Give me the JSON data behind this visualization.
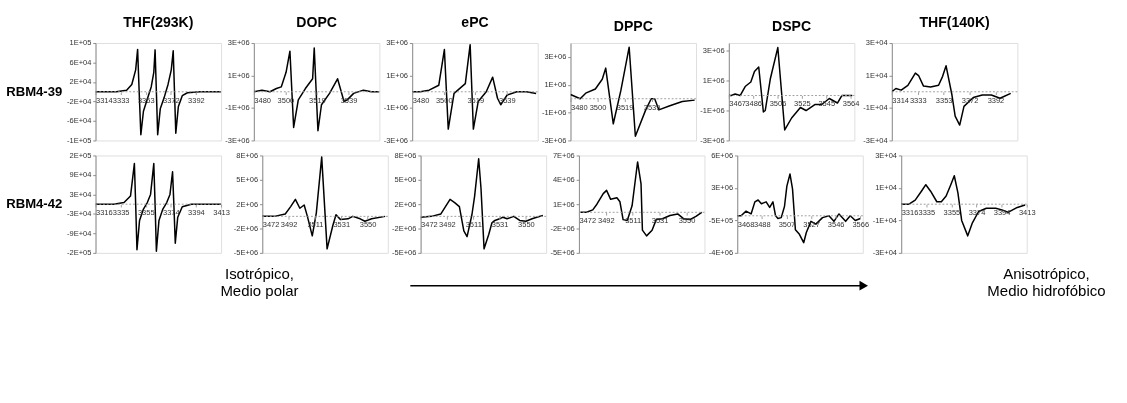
{
  "chart_data": [
    {
      "type": "line",
      "title": "THF(293K)",
      "ylabel": "RBM4-39",
      "color": "#000000",
      "xlim": [
        3314,
        3411
      ],
      "ylim": [
        -100000,
        100000
      ],
      "ref_lines": [
        {
          "axis": "y",
          "value": 0,
          "line_style": "dotted"
        }
      ],
      "xticks": [
        3314,
        {
          "value": 3333.4,
          "label": "3333"
        },
        {
          "value": 3352.8,
          "label": "3353"
        },
        {
          "value": 3372.2,
          "label": "3372"
        },
        {
          "value": 3391.6,
          "label": "3392"
        }
      ],
      "yticks": [
        {
          "value": -100000,
          "label": "-1E+05"
        },
        {
          "value": -60000,
          "label": "-6E+04"
        },
        {
          "value": -20000,
          "label": "-2E+04"
        },
        {
          "value": 20000,
          "label": "2E+04"
        },
        {
          "value": 60000,
          "label": "6E+04"
        },
        {
          "value": 100000,
          "label": "1E+05"
        }
      ],
      "x": [
        3314,
        3330,
        3338,
        3342,
        3345,
        3346.5,
        3347.7,
        3349,
        3351,
        3354,
        3357,
        3359,
        3360,
        3361,
        3362,
        3364,
        3367,
        3370,
        3372.5,
        3374,
        3375,
        3376,
        3378,
        3381,
        3385,
        3395,
        3411
      ],
      "values": [
        0,
        0,
        3000,
        15000,
        45000,
        87000,
        0,
        -88000,
        -40000,
        -15000,
        10000,
        40000,
        86000,
        0,
        -88000,
        -35000,
        -12000,
        15000,
        45000,
        84000,
        0,
        -85000,
        -30000,
        -8000,
        -2000,
        0,
        0
      ]
    },
    {
      "type": "line",
      "title": "DOPC",
      "color": "#000000",
      "xlim": [
        3480,
        3558
      ],
      "ylim": [
        -3000000,
        3000000
      ],
      "ref_lines": [
        {
          "axis": "y",
          "value": 0,
          "line_style": "dotted"
        }
      ],
      "xticks": [
        3480,
        {
          "value": 3499.6,
          "label": "3500"
        },
        {
          "value": 3519.2,
          "label": "3519"
        },
        {
          "value": 3538.8,
          "label": "3539"
        }
      ],
      "yticks": [
        {
          "value": -3000000,
          "label": "-3E+06"
        },
        {
          "value": -1000000,
          "label": "-1E+06"
        },
        {
          "value": 1000000,
          "label": "1E+06"
        },
        {
          "value": 3000000,
          "label": "3E+06"
        }
      ],
      "x": [
        3480,
        3485,
        3490,
        3494,
        3497,
        3500,
        3502.4,
        3504.7,
        3507.6,
        3512,
        3516.5,
        3517.5,
        3519.8,
        3522,
        3527,
        3532,
        3536,
        3538,
        3542,
        3548,
        3553,
        3558
      ],
      "values": [
        0,
        100000,
        0,
        200000,
        300000,
        1200000,
        2500000,
        -2200000,
        -500000,
        200000,
        800000,
        2700000,
        -2400000,
        -800000,
        -100000,
        800000,
        -600000,
        -500000,
        -100000,
        100000,
        0,
        0
      ]
    },
    {
      "type": "line",
      "title": "ePC",
      "color": "#000000",
      "xlim": [
        3480,
        3558
      ],
      "ylim": [
        -3000000,
        3000000
      ],
      "ref_lines": [
        {
          "axis": "y",
          "value": 0,
          "line_style": "dotted"
        }
      ],
      "xticks": [
        3480,
        {
          "value": 3499.6,
          "label": "3500"
        },
        {
          "value": 3519.2,
          "label": "3519"
        },
        {
          "value": 3538.8,
          "label": "3539"
        }
      ],
      "yticks": [
        {
          "value": -3000000,
          "label": "-3E+06"
        },
        {
          "value": -1000000,
          "label": "-1E+06"
        },
        {
          "value": 1000000,
          "label": "1E+06"
        },
        {
          "value": 3000000,
          "label": "3E+06"
        }
      ],
      "x": [
        3480,
        3485,
        3490.5,
        3496.5,
        3500,
        3502.4,
        3506,
        3513,
        3516,
        3518,
        3521,
        3526,
        3530,
        3533,
        3535,
        3539,
        3545,
        3551,
        3557
      ],
      "values": [
        0,
        0,
        100000,
        400000,
        2600000,
        -2300000,
        -100000,
        500000,
        2900000,
        -2300000,
        -600000,
        0,
        900000,
        -400000,
        -800000,
        -200000,
        0,
        0,
        -100000
      ]
    },
    {
      "type": "line",
      "title": "DPPC",
      "color": "#000000",
      "xlim": [
        3480,
        3571
      ],
      "ylim": [
        -3000000,
        4000000
      ],
      "ref_lines": [
        {
          "axis": "y",
          "value": 0,
          "line_style": "dotted"
        }
      ],
      "xticks": [
        3480,
        {
          "value": 3499.6,
          "label": "3500"
        },
        {
          "value": 3519.2,
          "label": "3519"
        },
        {
          "value": 3538.8,
          "label": "3539"
        }
      ],
      "yticks": [
        {
          "value": -3000000,
          "label": "-3E+06"
        },
        {
          "value": -1000000,
          "label": "-1E+06"
        },
        {
          "value": 1000000,
          "label": "1E+06"
        },
        {
          "value": 3000000,
          "label": "3E+06"
        }
      ],
      "x": [
        3480,
        3487,
        3491,
        3498,
        3503,
        3505.5,
        3511,
        3516.5,
        3522.5,
        3527,
        3534.5,
        3538.5,
        3541,
        3544,
        3552,
        3561,
        3570
      ],
      "values": [
        300000,
        0,
        400000,
        700000,
        1400000,
        2200000,
        -1800000,
        600000,
        3700000,
        -2700000,
        -800000,
        0,
        0,
        -800000,
        -500000,
        -200000,
        -100000
      ]
    },
    {
      "type": "line",
      "title": "DSPC",
      "color": "#000000",
      "xlim": [
        3467,
        3567
      ],
      "ylim": [
        -3000000,
        3500000
      ],
      "ref_lines": [
        {
          "axis": "y",
          "value": 0,
          "line_style": "dotted"
        }
      ],
      "xticks": [
        3467,
        {
          "value": 3486.4,
          "label": "3486"
        },
        {
          "value": 3505.8,
          "label": "3506"
        },
        {
          "value": 3525.2,
          "label": "3525"
        },
        {
          "value": 3544.6,
          "label": "3545"
        },
        3564
      ],
      "yticks": [
        {
          "value": -3000000,
          "label": "-3E+06"
        },
        {
          "value": -1000000,
          "label": "-1E+06"
        },
        {
          "value": 1000000,
          "label": "1E+06"
        },
        {
          "value": 3000000,
          "label": "3E+06"
        }
      ],
      "x": [
        3467,
        3469,
        3472,
        3476,
        3480,
        3484.5,
        3487.4,
        3490.8,
        3494.5,
        3496,
        3500,
        3506,
        3511.5,
        3517,
        3524,
        3528.5,
        3535.5,
        3541,
        3547,
        3553.5,
        3557,
        3565.3
      ],
      "values": [
        0,
        0,
        100000,
        0,
        600000,
        900000,
        1600000,
        1900000,
        -1100000,
        -1000000,
        1100000,
        3200000,
        -2300000,
        -1500000,
        -800000,
        -1000000,
        -600000,
        -600000,
        -200000,
        -500000,
        0,
        0
      ]
    },
    {
      "type": "line",
      "title": "THF(140K)",
      "color": "#000000",
      "xlim": [
        3314,
        3408
      ],
      "ylim": [
        -30000,
        30000
      ],
      "ref_lines": [
        {
          "axis": "y",
          "value": 0,
          "line_style": "dotted"
        }
      ],
      "xticks": [
        3314,
        {
          "value": 3333.4,
          "label": "3333"
        },
        {
          "value": 3352.8,
          "label": "3353"
        },
        {
          "value": 3372.2,
          "label": "3372"
        },
        {
          "value": 3391.6,
          "label": "3392"
        }
      ],
      "yticks": [
        {
          "value": -30000,
          "label": "-3E+04"
        },
        {
          "value": -10000,
          "label": "-1E+04"
        },
        {
          "value": 10000,
          "label": "1E+04"
        },
        {
          "value": 30000,
          "label": "3E+04"
        }
      ],
      "x": [
        3314,
        3317,
        3321,
        3326,
        3331.6,
        3334,
        3337.7,
        3343,
        3349,
        3352,
        3354.6,
        3359,
        3361.4,
        3364.8,
        3368,
        3375,
        3381.7,
        3388.5,
        3395,
        3403
      ],
      "values": [
        0,
        2000,
        1000,
        4000,
        11500,
        10000,
        3500,
        3000,
        4000,
        9500,
        16000,
        -2000,
        -15000,
        -20500,
        -9000,
        -3500,
        -2000,
        -2000,
        -4000,
        -1000
      ]
    },
    {
      "type": "line",
      "ylabel": "RBM4-42",
      "color": "#000000",
      "xlim": [
        3316,
        3413
      ],
      "ylim": [
        -150000,
        150000
      ],
      "ref_lines": [
        {
          "axis": "y",
          "value": 0,
          "line_style": "dotted"
        }
      ],
      "annotations": [
        "Isotrópico,\nMedio polar"
      ],
      "xticks": [
        3316,
        {
          "value": 3335.4,
          "label": "3335"
        },
        {
          "value": 3354.8,
          "label": "3355"
        },
        {
          "value": 3374.2,
          "label": "3374"
        },
        {
          "value": 3393.6,
          "label": "3394"
        },
        3413
      ],
      "yticks": [
        {
          "value": -150000,
          "label": "-2E+05"
        },
        {
          "value": -90000,
          "label": "-9E+04"
        },
        {
          "value": -30000,
          "label": "-3E+04"
        },
        {
          "value": 30000,
          "label": "3E+04"
        },
        {
          "value": 90000,
          "label": "9E+04"
        },
        {
          "value": 150000,
          "label": "2E+05"
        }
      ],
      "x": [
        3316,
        3330,
        3338,
        3343,
        3346,
        3347,
        3348,
        3350,
        3353,
        3356,
        3358.5,
        3361,
        3362,
        3363,
        3365,
        3368,
        3371,
        3373.5,
        3375.5,
        3376.5,
        3377.6,
        3379.5,
        3383,
        3390,
        3413
      ],
      "values": [
        0,
        0,
        5000,
        25000,
        125000,
        0,
        -140000,
        -50000,
        -15000,
        5000,
        30000,
        125000,
        0,
        -145000,
        -50000,
        -15000,
        5000,
        30000,
        100000,
        0,
        -120000,
        -40000,
        -8000,
        0,
        0
      ]
    },
    {
      "type": "line",
      "color": "#000000",
      "xlim": [
        3472,
        3565
      ],
      "ylim": [
        -4500000,
        7500000
      ],
      "ref_lines": [
        {
          "axis": "y",
          "value": 0,
          "line_style": "dotted"
        }
      ],
      "xticks": [
        3472,
        {
          "value": 3491.5,
          "label": "3492"
        },
        3511,
        {
          "value": 3530.5,
          "label": "3531"
        },
        3550
      ],
      "yticks": [
        {
          "value": -4500000,
          "label": "-5E+06"
        },
        {
          "value": -1500000,
          "label": "-2E+06"
        },
        {
          "value": 1500000,
          "label": "2E+06"
        },
        {
          "value": 4500000,
          "label": "5E+06"
        },
        {
          "value": 7500000,
          "label": "8E+06"
        }
      ],
      "x": [
        3472,
        3474,
        3481,
        3489,
        3493,
        3496.5,
        3499.8,
        3503,
        3505.4,
        3509,
        3512,
        3516,
        3520,
        3524.3,
        3526.6,
        3530,
        3535.5,
        3539,
        3544.5,
        3548,
        3553,
        3563
      ],
      "values": [
        0,
        0,
        0,
        300000,
        1200000,
        2100000,
        1000000,
        1400000,
        0,
        -2400000,
        400000,
        7300000,
        -4000000,
        -1100000,
        200000,
        -400000,
        -300000,
        0,
        -300000,
        -600000,
        -300000,
        0
      ]
    },
    {
      "type": "line",
      "color": "#000000",
      "xlim": [
        3472,
        3565
      ],
      "ylim": [
        -4500000,
        7500000
      ],
      "ref_lines": [
        {
          "axis": "y",
          "value": 0,
          "line_style": "dotted"
        }
      ],
      "xticks": [
        3472,
        {
          "value": 3491.5,
          "label": "3492"
        },
        3511,
        {
          "value": 3530.5,
          "label": "3531"
        },
        3550
      ],
      "yticks": [
        {
          "value": -4500000,
          "label": "-5E+06"
        },
        {
          "value": -1500000,
          "label": "-2E+06"
        },
        {
          "value": 1500000,
          "label": "2E+06"
        },
        {
          "value": 4500000,
          "label": "5E+06"
        },
        {
          "value": 7500000,
          "label": "8E+06"
        }
      ],
      "x": [
        3472,
        3480,
        3487,
        3490.4,
        3493.8,
        3497.2,
        3500.7,
        3504,
        3506.4,
        3510,
        3512,
        3515,
        3516.7,
        3519,
        3522.5,
        3524.8,
        3527,
        3530.5,
        3533,
        3536,
        3541,
        3545.4,
        3550,
        3554.6,
        3558,
        3562.6
      ],
      "values": [
        -100000,
        0,
        300000,
        1200000,
        2100000,
        1700000,
        1200000,
        -1800000,
        -2500000,
        200000,
        2500000,
        7100000,
        3500000,
        -4000000,
        -2200000,
        -800000,
        -500000,
        -300000,
        -100000,
        -300000,
        0,
        -500000,
        -600000,
        -300000,
        -100000,
        100000
      ]
    },
    {
      "type": "line",
      "color": "#000000",
      "xlim": [
        3472,
        3563
      ],
      "ylim": [
        -5000000,
        7000000
      ],
      "ref_lines": [
        {
          "axis": "y",
          "value": 0,
          "line_style": "dotted"
        }
      ],
      "xticks": [
        3472,
        {
          "value": 3491.5,
          "label": "3492"
        },
        3511,
        {
          "value": 3530.5,
          "label": "3531"
        },
        3550
      ],
      "yticks": [
        {
          "value": -5000000,
          "label": "-5E+06"
        },
        {
          "value": -2000000,
          "label": "-2E+06"
        },
        {
          "value": 1000000,
          "label": "1E+06"
        },
        {
          "value": 4000000,
          "label": "4E+06"
        },
        {
          "value": 7000000,
          "label": "7E+06"
        }
      ],
      "x": [
        3473,
        3477.5,
        3482,
        3485,
        3489.6,
        3492,
        3495,
        3499.5,
        3501.7,
        3504,
        3507,
        3510.5,
        3514.5,
        3517,
        3518,
        3521,
        3525,
        3528,
        3532.5,
        3538,
        3543.6,
        3548,
        3552.4,
        3556.8,
        3561
      ],
      "values": [
        0,
        0,
        300000,
        1000000,
        2300000,
        2700000,
        1600000,
        1800000,
        1300000,
        -900000,
        -1000000,
        800000,
        6200000,
        3500000,
        -2200000,
        -2900000,
        -2200000,
        -900000,
        -800000,
        -400000,
        -200000,
        -800000,
        -900000,
        -500000,
        0
      ]
    },
    {
      "type": "line",
      "color": "#000000",
      "xlim": [
        3468,
        3568
      ],
      "ylim": [
        -4000000,
        6500000
      ],
      "ref_lines": [
        {
          "axis": "y",
          "value": 0,
          "line_style": "dotted"
        }
      ],
      "xticks": [
        3468,
        {
          "value": 3487.6,
          "label": "3488"
        },
        {
          "value": 3507.2,
          "label": "3507"
        },
        {
          "value": 3526.8,
          "label": "3527"
        },
        {
          "value": 3546.4,
          "label": "3546"
        },
        3566
      ],
      "yticks": [
        {
          "value": -4000000,
          "label": "-4E+06"
        },
        {
          "value": -500000,
          "label": "-5E+05"
        },
        {
          "value": 3000000,
          "label": "3E+06"
        },
        {
          "value": 6500000,
          "label": "6E+06"
        }
      ],
      "x": [
        3468,
        3471,
        3475,
        3479,
        3482,
        3484.6,
        3487.2,
        3491,
        3493.8,
        3496.4,
        3498.5,
        3500.4,
        3503,
        3505.6,
        3507.5,
        3510,
        3512,
        3514.3,
        3517.5,
        3520.9,
        3523,
        3526.7,
        3530.6,
        3535.9,
        3541,
        3545,
        3549,
        3554.3,
        3558,
        3562,
        3566
      ],
      "values": [
        0,
        0,
        500000,
        200000,
        1500000,
        1700000,
        1300000,
        1500000,
        900000,
        1500000,
        0,
        -300000,
        -200000,
        1000000,
        3200000,
        4500000,
        2900000,
        -1500000,
        -2000000,
        -2900000,
        -1800000,
        -600000,
        -900000,
        -200000,
        0,
        -600000,
        200000,
        -600000,
        0,
        -500000,
        -300000
      ]
    },
    {
      "type": "line",
      "color": "#000000",
      "xlim": [
        3316,
        3413
      ],
      "ylim": [
        -30000,
        30000
      ],
      "ref_lines": [
        {
          "axis": "y",
          "value": 0,
          "line_style": "dotted"
        }
      ],
      "annotations": [
        "Anisotrópico,\nMedio hidrofóbico"
      ],
      "xticks": [
        3316,
        {
          "value": 3335.4,
          "label": "3335"
        },
        {
          "value": 3354.8,
          "label": "3355"
        },
        {
          "value": 3374.2,
          "label": "3374"
        },
        {
          "value": 3393.6,
          "label": "3394"
        },
        3413
      ],
      "yticks": [
        {
          "value": -30000,
          "label": "-3E+04"
        },
        {
          "value": -10000,
          "label": "-1E+04"
        },
        {
          "value": 10000,
          "label": "1E+04"
        },
        {
          "value": 30000,
          "label": "3E+04"
        }
      ],
      "x": [
        3316,
        3322,
        3326.8,
        3331.6,
        3335,
        3338.7,
        3343.5,
        3347,
        3350.7,
        3354.3,
        3357,
        3359.8,
        3362.7,
        3367.4,
        3371,
        3375.8,
        3381.8,
        3389,
        3393.8,
        3398.5,
        3405.7,
        3411.7
      ],
      "values": [
        0,
        0,
        2500,
        8000,
        12000,
        8000,
        1500,
        1500,
        5000,
        12000,
        17500,
        7000,
        -10000,
        -19500,
        -11500,
        -4500,
        -2500,
        -2500,
        -3500,
        -5000,
        -2000,
        -500
      ]
    }
  ]
}
